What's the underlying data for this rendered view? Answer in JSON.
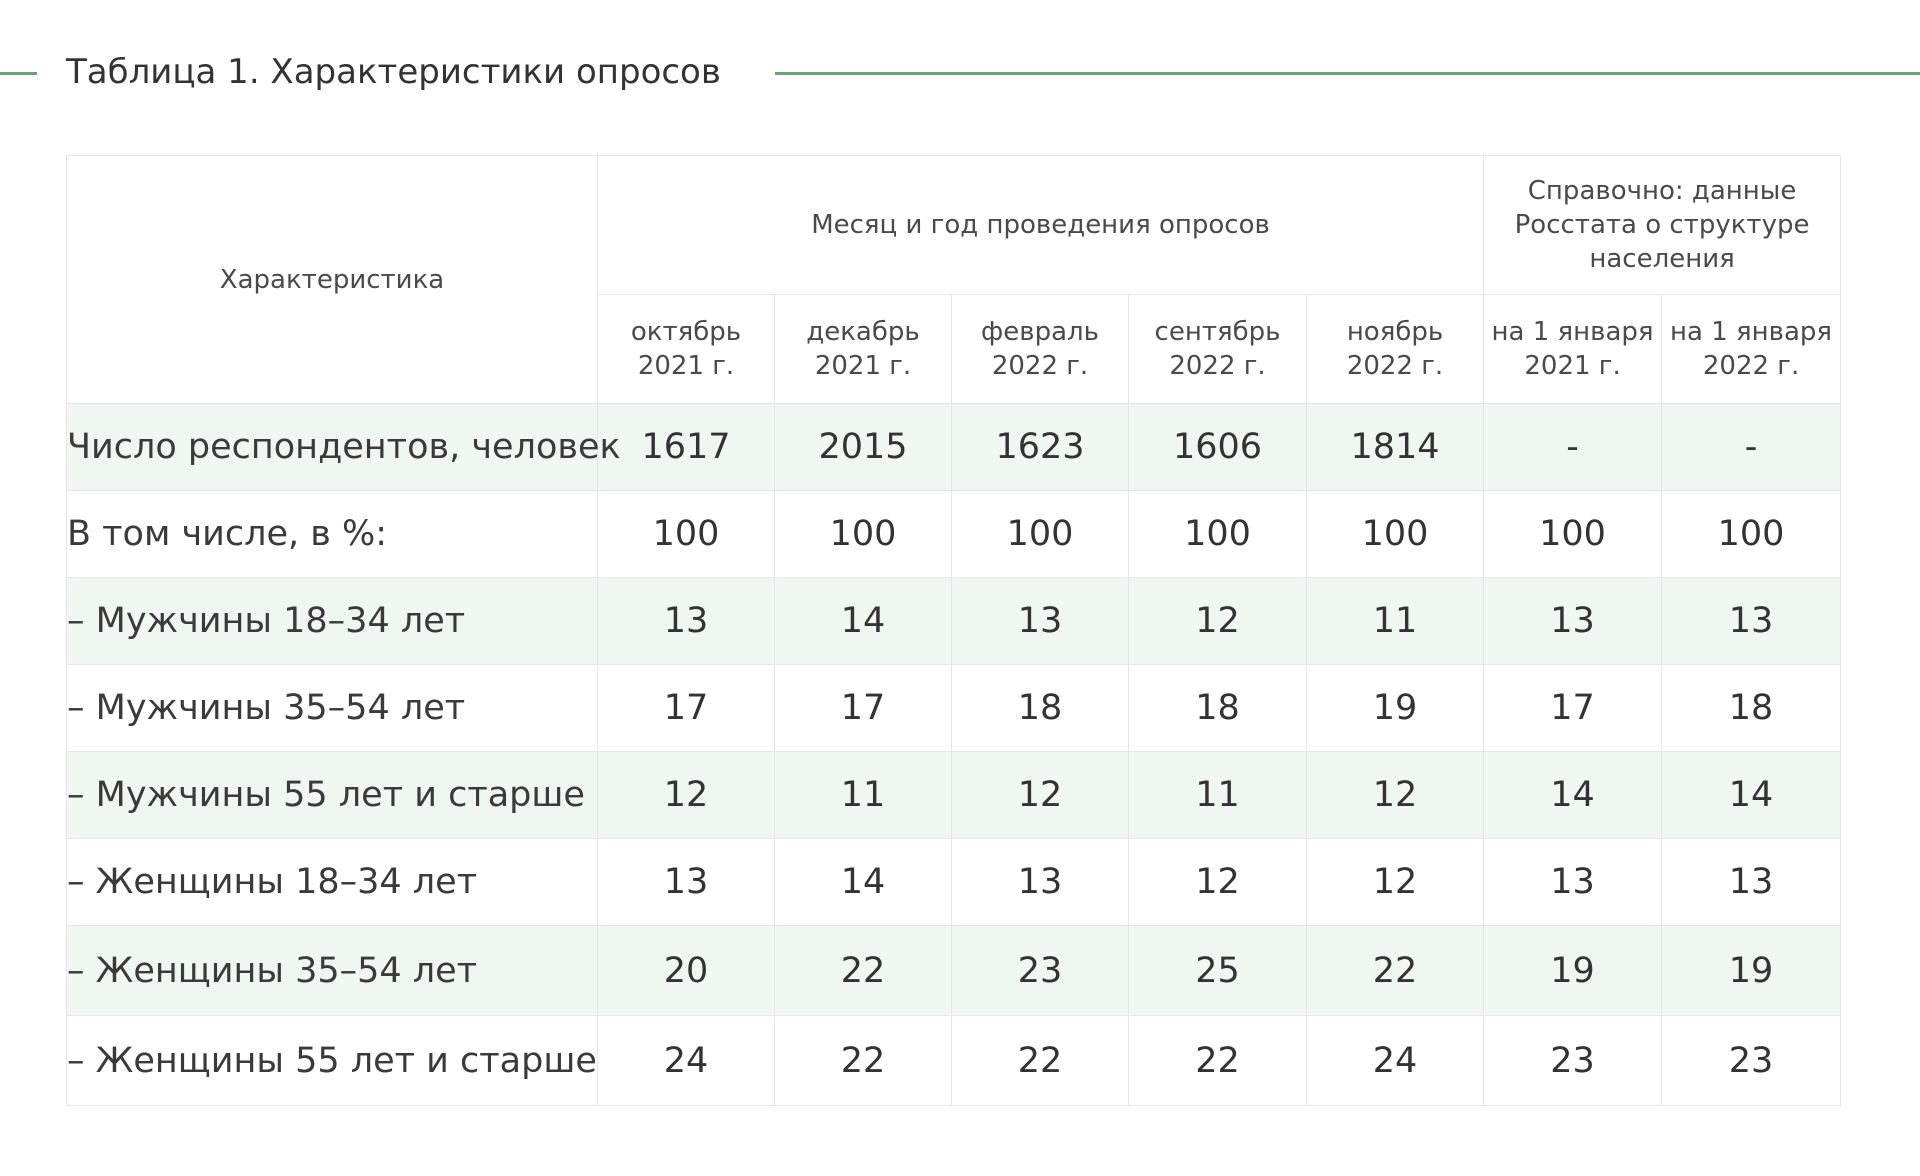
{
  "title": "Таблица 1. Характеристики опросов",
  "colors": {
    "accent_line": "#6aa36f",
    "row_shade": "#f0f7f0",
    "grid": "#e6e6e6"
  },
  "table": {
    "header": {
      "characteristic": "Характеристика",
      "months_group": "Месяц и год проведения опросов",
      "rosstat_group": "Справочно: данные Росстата о структуре населения",
      "columns": [
        "октябрь 2021 г.",
        "декабрь 2021 г.",
        "февраль 2022 г.",
        "сентябрь 2022 г.",
        "ноябрь 2022 г.",
        "на 1 января 2021 г.",
        "на 1 января 2022 г."
      ]
    },
    "rows": [
      {
        "label": "Число респондентов, человек",
        "values": [
          "1617",
          "2015",
          "1623",
          "1606",
          "1814",
          "-",
          "-"
        ]
      },
      {
        "label": "В том числе, в %:",
        "values": [
          "100",
          "100",
          "100",
          "100",
          "100",
          "100",
          "100"
        ]
      },
      {
        "label": "– Мужчины 18–34 лет",
        "values": [
          "13",
          "14",
          "13",
          "12",
          "11",
          "13",
          "13"
        ]
      },
      {
        "label": "– Мужчины 35–54 лет",
        "values": [
          "17",
          "17",
          "18",
          "18",
          "19",
          "17",
          "18"
        ]
      },
      {
        "label": "– Мужчины 55 лет и старше",
        "values": [
          "12",
          "11",
          "12",
          "11",
          "12",
          "14",
          "14"
        ]
      },
      {
        "label": "– Женщины 18–34 лет",
        "values": [
          "13",
          "14",
          "13",
          "12",
          "12",
          "13",
          "13"
        ]
      },
      {
        "label": "– Женщины 35–54 лет",
        "values": [
          "20",
          "22",
          "23",
          "25",
          "22",
          "19",
          "19"
        ]
      },
      {
        "label": "– Женщины 55 лет и старше",
        "values": [
          "24",
          "22",
          "22",
          "22",
          "24",
          "23",
          "23"
        ]
      }
    ]
  }
}
